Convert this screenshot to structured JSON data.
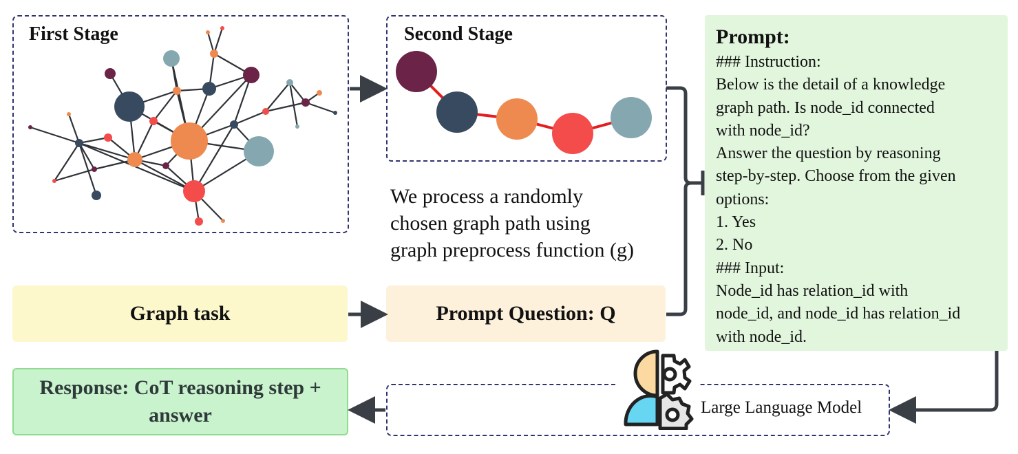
{
  "first_stage": {
    "title": "First Stage"
  },
  "second_stage": {
    "title": "Second Stage"
  },
  "description": {
    "lines": [
      "We process a randomly",
      "chosen graph path using",
      "graph preprocess function (g)"
    ]
  },
  "graph_task": {
    "label": "Graph task"
  },
  "prompt_question": {
    "label": "Prompt Question: Q"
  },
  "prompt": {
    "title": "Prompt:",
    "lines": [
      "### Instruction:",
      "Below is the detail of a knowledge",
      "graph path. Is node_id connected",
      "with node_id?",
      "Answer the question by reasoning",
      "step-by-step. Choose from the given",
      "options:",
      "1. Yes",
      "2. No",
      "### Input:",
      "Node_id has relation_id with",
      "node_id, and node_id has relation_id",
      "with node_id."
    ]
  },
  "llm": {
    "label": "Large Language Model",
    "icon": "ai-head-gear-icon"
  },
  "response": {
    "label": "Response: CoT reasoning step + answer"
  },
  "colors": {
    "frame": "#2e3470",
    "arrow": "#3a3f46",
    "graph_task_bg": "#fcf8cc",
    "prompt_question_bg": "#fdf1dc",
    "prompt_bg": "#e1f6dd",
    "response_bg": "#c9f3cd",
    "path_edge": "#e21f1f",
    "node_plum": "#6b2347",
    "node_navy": "#374a60",
    "node_orange": "#ee8a4f",
    "node_red": "#f44b4b",
    "node_teal": "#85a8b0"
  }
}
